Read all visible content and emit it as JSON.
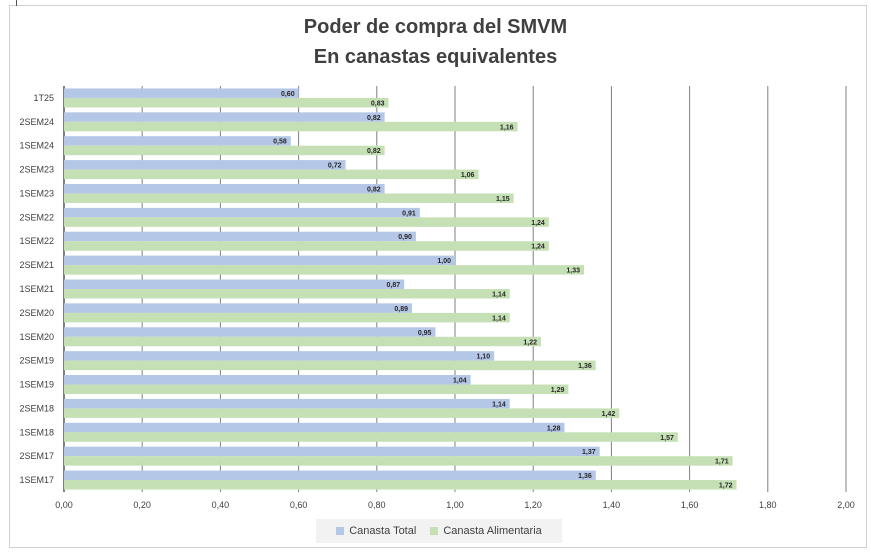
{
  "chart_data": {
    "type": "bar",
    "orientation": "horizontal",
    "title": "Poder de compra del SMVM",
    "subtitle": "En canastas equivalentes",
    "categories": [
      "1T25",
      "2SEM24",
      "1SEM24",
      "2SEM23",
      "1SEM23",
      "2SEM22",
      "1SEM22",
      "2SEM21",
      "1SEM21",
      "2SEM20",
      "1SEM20",
      "2SEM19",
      "1SEM19",
      "2SEM18",
      "1SEM18",
      "2SEM17",
      "1SEM17"
    ],
    "series": [
      {
        "name": "Canasta Total",
        "color": "#b4c7e7",
        "values": [
          0.6,
          0.82,
          0.58,
          0.72,
          0.82,
          0.91,
          0.9,
          1.0,
          0.87,
          0.89,
          0.95,
          1.1,
          1.04,
          1.14,
          1.28,
          1.37,
          1.36
        ],
        "labels": [
          "0,60",
          "0,82",
          "0,58",
          "0,72",
          "0,82",
          "0,91",
          "0,90",
          "1,00",
          "0,87",
          "0,89",
          "0,95",
          "1,10",
          "1,04",
          "1,14",
          "1,28",
          "1,37",
          "1,36"
        ]
      },
      {
        "name": "Canasta Alimentaria",
        "color": "#c5e0b4",
        "values": [
          0.83,
          1.16,
          0.82,
          1.06,
          1.15,
          1.24,
          1.24,
          1.33,
          1.14,
          1.14,
          1.22,
          1.36,
          1.29,
          1.42,
          1.57,
          1.71,
          1.72
        ],
        "labels": [
          "0,83",
          "1,16",
          "0,82",
          "1,06",
          "1,15",
          "1,24",
          "1,24",
          "1,33",
          "1,14",
          "1,14",
          "1,22",
          "1,36",
          "1,29",
          "1,42",
          "1,57",
          "1,71",
          "1,72"
        ]
      }
    ],
    "xlim": [
      0,
      2
    ],
    "xticks": [
      0,
      0.2,
      0.4,
      0.6,
      0.8,
      1.0,
      1.2,
      1.4,
      1.6,
      1.8,
      2.0
    ],
    "xtick_labels": [
      "0,00",
      "0,20",
      "0,40",
      "0,60",
      "0,80",
      "1,00",
      "1,20",
      "1,40",
      "1,60",
      "1,80",
      "2,00"
    ],
    "grid": true,
    "legend_position": "bottom"
  }
}
